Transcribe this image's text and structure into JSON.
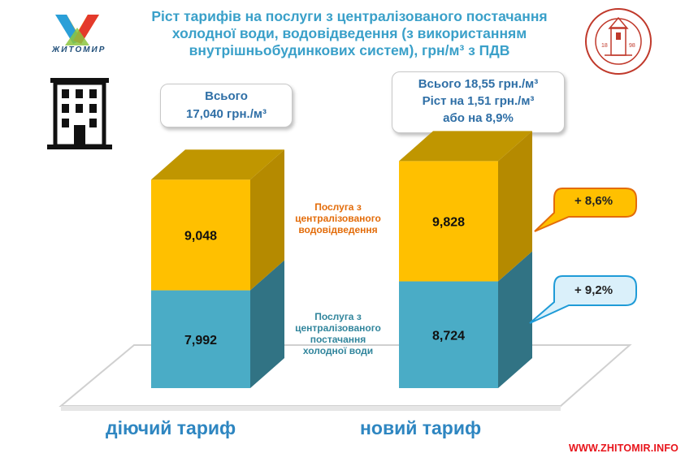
{
  "header": {
    "title_lines": [
      "Ріст тарифів на послуги з централізованого постачання",
      "холодної води, водовідведення (з використанням",
      "внутрішньобудинкових систем), грн/м³ з ПДВ"
    ],
    "city_logo_text": "ЖИТОМИР",
    "company_logo_text": "КОМУНАЛЬНЕ ПІДПРИЄМСТВО ЖИТОМИРВОДОКАНАЛ",
    "company_logo_years": [
      "18",
      "98"
    ]
  },
  "callouts": {
    "current_total": [
      "Всього",
      "17,040 грн./м³"
    ],
    "new_total": [
      "Всього 18,55 грн./м³",
      "Ріст на 1,51 грн./м³",
      "або на 8,9%"
    ],
    "growth_sewerage": "+ 8,6%",
    "growth_water": "+ 9,2%"
  },
  "series_labels": {
    "sewerage": [
      "Послуга з",
      "централізованого",
      "водовідведення"
    ],
    "water": [
      "Послуга з",
      "централізованого",
      "постачання",
      "холодної води"
    ]
  },
  "watermark": "WWW.ZHITOMIR.INFO",
  "colors": {
    "water_front": "#4aacc6",
    "water_side": "#317384",
    "sewerage_front": "#ffc000",
    "sewerage_side": "#b58a00",
    "sewerage_top": "#c09600",
    "accent_blue": "#2e86c1",
    "sewerage_label": "#e36c0a",
    "water_label": "#31859c",
    "bubble_orange_fill": "#ffc000",
    "bubble_orange_border": "#e36c0a",
    "bubble_blue_fill": "#daf0fa",
    "bubble_blue_border": "#1f9bd7"
  },
  "chart_data": {
    "type": "bar",
    "stacked": true,
    "categories": [
      "діючий тариф",
      "новий тариф"
    ],
    "series": [
      {
        "name": "Послуга з централізованого постачання холодної води",
        "values": [
          7.992,
          8.724
        ],
        "labels": [
          "7,992",
          "8,724"
        ]
      },
      {
        "name": "Послуга з централізованого водовідведення",
        "values": [
          9.048,
          9.828
        ],
        "labels": [
          "9,048",
          "9,828"
        ]
      }
    ],
    "unit": "грн/м³"
  }
}
